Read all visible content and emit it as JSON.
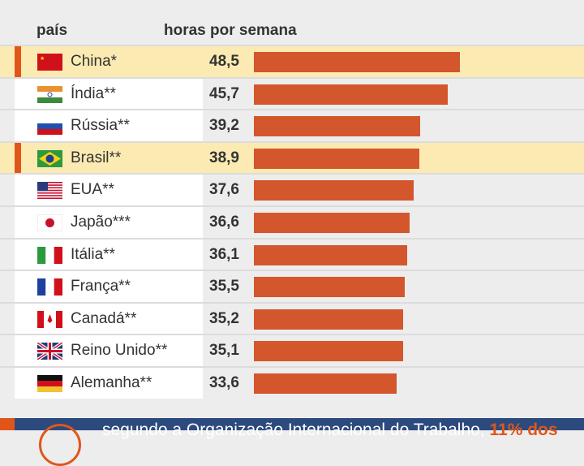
{
  "header": {
    "country": "país",
    "hours": "horas por semana"
  },
  "colors": {
    "bar": "#d4562c",
    "highlight": "#fbebb3",
    "accent": "#e0561a",
    "banner": "#2c4a7e"
  },
  "chart_data": {
    "type": "bar",
    "orientation": "horizontal",
    "xlabel": "horas por semana",
    "ylabel": "país",
    "categories": [
      "China*",
      "Índia**",
      "Rússia**",
      "Brasil**",
      "EUA**",
      "Japão***",
      "Itália**",
      "França**",
      "Canadá**",
      "Reino Unido**",
      "Alemanha**"
    ],
    "values": [
      48.5,
      45.7,
      39.2,
      38.9,
      37.6,
      36.6,
      36.1,
      35.5,
      35.2,
      35.1,
      33.6
    ],
    "labels": [
      "48,5",
      "45,7",
      "39,2",
      "38,9",
      "37,6",
      "36,6",
      "36,1",
      "35,5",
      "35,2",
      "35,1",
      "33,6"
    ],
    "highlighted": [
      "China*",
      "Brasil**"
    ],
    "flags": [
      "cn",
      "in",
      "ru",
      "br",
      "us",
      "jp",
      "it",
      "fr",
      "ca",
      "gb",
      "de"
    ]
  },
  "banner": {
    "text": "segundo a Organização Internacional do Trabalho, ",
    "highlight": "11% dos"
  }
}
